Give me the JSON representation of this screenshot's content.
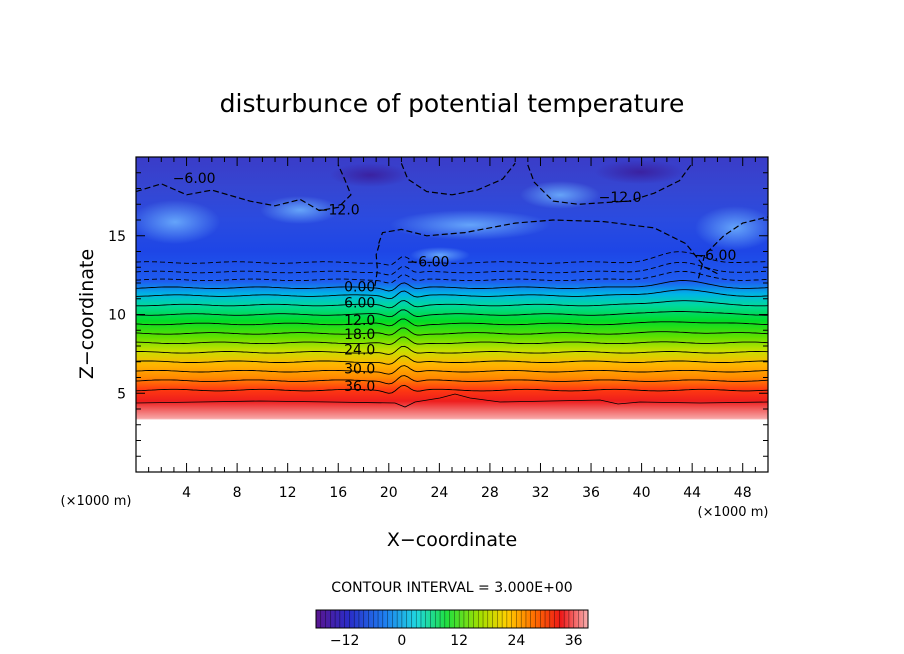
{
  "chart_data": {
    "type": "heatmap",
    "title": "disturbunce of potential temperature",
    "xlabel": "X−coordinate",
    "ylabel": "Z−coordinate",
    "x_unit": "(×1000 m)",
    "y_unit": "(×1000 m)",
    "xlim": [
      0,
      50
    ],
    "ylim": [
      0,
      20
    ],
    "x_ticks": [
      "4",
      "8",
      "12",
      "16",
      "20",
      "24",
      "28",
      "32",
      "36",
      "40",
      "44",
      "48"
    ],
    "y_ticks": [
      "5",
      "10",
      "15"
    ],
    "contour_interval": "CONTOUR INTERVAL = 3.000E+00",
    "colorbar": {
      "min": -18,
      "max": 39,
      "ticks": [
        "−12",
        "0",
        "12",
        "24",
        "36"
      ]
    },
    "contour_labels": [
      {
        "text": "36.0",
        "x": 17.7,
        "z": 5.4
      },
      {
        "text": "30.0",
        "x": 17.7,
        "z": 6.5
      },
      {
        "text": "24.0",
        "x": 17.7,
        "z": 7.7
      },
      {
        "text": "18.0",
        "x": 17.7,
        "z": 8.7
      },
      {
        "text": "12.0",
        "x": 17.7,
        "z": 9.6
      },
      {
        "text": "6.00",
        "x": 17.7,
        "z": 10.7
      },
      {
        "text": "0.00",
        "x": 17.7,
        "z": 11.7
      },
      {
        "text": "−6.00",
        "x": 23.1,
        "z": 13.3
      },
      {
        "text": "−12.0",
        "x": 16.0,
        "z": 16.6
      },
      {
        "text": "−6.00",
        "x": 4.6,
        "z": 18.6
      },
      {
        "text": "−12.0",
        "x": 38.3,
        "z": 17.4
      },
      {
        "text": "−6.00",
        "x": 45.8,
        "z": 13.7
      }
    ]
  }
}
